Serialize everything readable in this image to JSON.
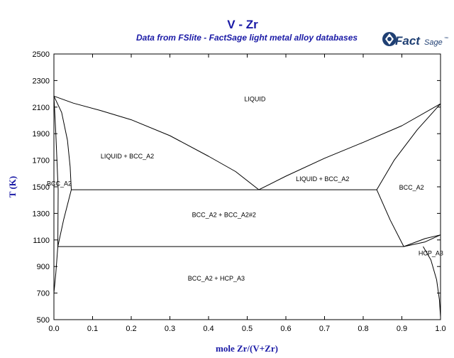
{
  "chart_data": {
    "type": "line",
    "title": "V - Zr",
    "subtitle": "Data from FSlite - FactSage light metal alloy databases",
    "xlabel": "mole Zr/(V+Zr)",
    "ylabel": "T (K)",
    "xlim": [
      0,
      1
    ],
    "ylim": [
      500,
      2500
    ],
    "x_ticks": [
      "0.0",
      "0.1",
      "0.2",
      "0.3",
      "0.4",
      "0.5",
      "0.6",
      "0.7",
      "0.8",
      "0.9",
      "1.0"
    ],
    "y_ticks": [
      "500",
      "700",
      "900",
      "1100",
      "1300",
      "1500",
      "1700",
      "1900",
      "2100",
      "2300",
      "2500"
    ],
    "grid": false,
    "logo": {
      "main": "Fact",
      "suffix": "Sage",
      "mark": "™"
    },
    "series": [
      {
        "id": "liquidus-left",
        "points": [
          [
            0.0,
            2183
          ],
          [
            0.05,
            2130
          ],
          [
            0.12,
            2075
          ],
          [
            0.2,
            2005
          ],
          [
            0.3,
            1885
          ],
          [
            0.4,
            1730
          ],
          [
            0.47,
            1615
          ],
          [
            0.53,
            1478
          ]
        ]
      },
      {
        "id": "liquidus-right",
        "points": [
          [
            0.53,
            1478
          ],
          [
            0.6,
            1580
          ],
          [
            0.7,
            1715
          ],
          [
            0.8,
            1835
          ],
          [
            0.9,
            1960
          ],
          [
            1.0,
            2125
          ]
        ]
      },
      {
        "id": "solidus-left",
        "points": [
          [
            0.0,
            2183
          ],
          [
            0.02,
            2060
          ],
          [
            0.035,
            1850
          ],
          [
            0.042,
            1650
          ],
          [
            0.045,
            1478
          ]
        ]
      },
      {
        "id": "solidus-right",
        "points": [
          [
            0.835,
            1478
          ],
          [
            0.88,
            1700
          ],
          [
            0.94,
            1930
          ],
          [
            0.98,
            2060
          ],
          [
            1.0,
            2125
          ]
        ]
      },
      {
        "id": "eutectic-line",
        "points": [
          [
            0.045,
            1478
          ],
          [
            0.835,
            1478
          ]
        ]
      },
      {
        "id": "eutectoid-line",
        "points": [
          [
            0.01,
            1050
          ],
          [
            0.905,
            1050
          ]
        ]
      },
      {
        "id": "bcc-solvus-left",
        "points": [
          [
            0.0,
            2183
          ],
          [
            0.005,
            1900
          ],
          [
            0.011,
            1478
          ],
          [
            0.01,
            1050
          ],
          [
            0.005,
            850
          ],
          [
            0.0,
            700
          ]
        ]
      },
      {
        "id": "misc-left",
        "points": [
          [
            0.045,
            1478
          ],
          [
            0.025,
            1250
          ],
          [
            0.01,
            1050
          ]
        ]
      },
      {
        "id": "misc-right",
        "points": [
          [
            0.835,
            1478
          ],
          [
            0.87,
            1250
          ],
          [
            0.905,
            1050
          ]
        ]
      },
      {
        "id": "hcp-bcc-upper",
        "points": [
          [
            0.905,
            1050
          ],
          [
            0.96,
            1110
          ],
          [
            1.0,
            1138
          ]
        ]
      },
      {
        "id": "hcp-bcc-lower",
        "points": [
          [
            0.905,
            1050
          ],
          [
            0.96,
            1085
          ],
          [
            1.0,
            1138
          ]
        ]
      },
      {
        "id": "hcp-solvus",
        "points": [
          [
            0.955,
            1050
          ],
          [
            0.975,
            950
          ],
          [
            0.99,
            800
          ],
          [
            0.997,
            650
          ],
          [
            1.0,
            520
          ]
        ]
      }
    ],
    "annotations": [
      {
        "text": "LIQUID",
        "x": 0.52,
        "y": 2160
      },
      {
        "text": "LIQUID + BCC_A2",
        "x": 0.19,
        "y": 1730
      },
      {
        "text": "LIQUID + BCC_A2",
        "x": 0.695,
        "y": 1560
      },
      {
        "text": "BCC_A2",
        "x": 0.0,
        "y": 1525
      },
      {
        "text": "BCC_A2",
        "x": 0.925,
        "y": 1495
      },
      {
        "text": "BCC_A2 + BCC_A2#2",
        "x": 0.44,
        "y": 1290
      },
      {
        "text": "BCC_A2 + HCP_A3",
        "x": 0.42,
        "y": 810
      },
      {
        "text": "HCP_A3",
        "x": 0.975,
        "y": 1000
      }
    ]
  }
}
